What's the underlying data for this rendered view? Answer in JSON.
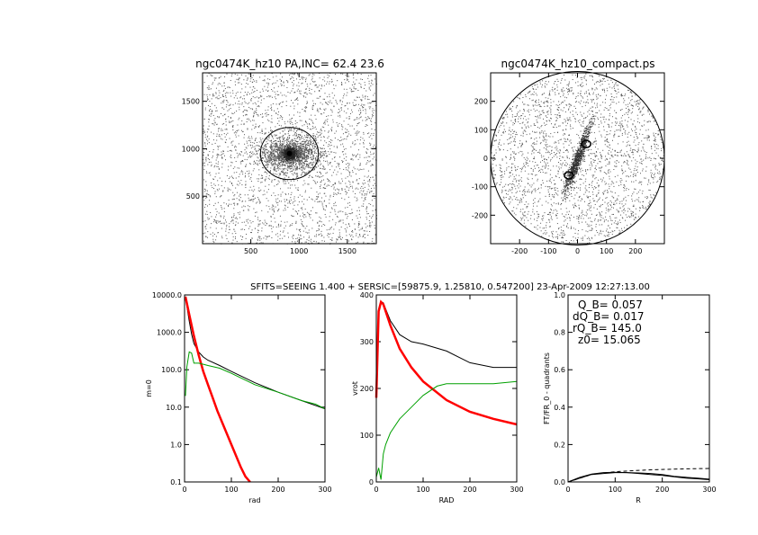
{
  "suptitle": "SFITS=SEEING 1.400 + SERSIC=[59875.9, 1.25810, 0.547200]  23-Apr-2009 12:27:13.00",
  "colors": {
    "black": "#000000",
    "red": "#ff0000",
    "green": "#00a000",
    "lightgreen": "#66ee66",
    "dots": "#555555"
  },
  "chart_data": [
    {
      "type": "scatter",
      "title": "ngc0474K_hz10 PA,INC= 62.4 23.6",
      "xlim": [
        0,
        1800
      ],
      "ylim": [
        0,
        1800
      ],
      "xticks": [
        "500",
        "1000",
        "1500"
      ],
      "yticks": [
        "500",
        "1000",
        "1500"
      ],
      "center": [
        900,
        950
      ],
      "ellipse_radius": 300
    },
    {
      "type": "scatter",
      "title": "ngc0474K_hz10_compact.ps",
      "xlim": [
        -300,
        300
      ],
      "ylim": [
        -300,
        300
      ],
      "xticks": [
        "-200",
        "-100",
        "0",
        "100",
        "200"
      ],
      "yticks": [
        "-200",
        "-100",
        "0",
        "100",
        "200"
      ],
      "circle_radius": 300
    },
    {
      "type": "line",
      "xlabel": "rad",
      "ylabel": "m=0",
      "xlim": [
        0,
        300
      ],
      "ylim": [
        0.1,
        10000
      ],
      "log_y": true,
      "xticks": [
        "0",
        "100",
        "200",
        "300"
      ],
      "yticks": [
        "0.1",
        "1.0",
        "10.0",
        "100.0",
        "1000.0",
        "10000.0"
      ],
      "series": [
        {
          "color": "black",
          "x": [
            2,
            5,
            10,
            15,
            20,
            30,
            40,
            50,
            75,
            100,
            150,
            200,
            250,
            300
          ],
          "y": [
            9000,
            5000,
            2000,
            900,
            500,
            300,
            220,
            180,
            130,
            90,
            45,
            25,
            15,
            9
          ]
        },
        {
          "color": "red",
          "x": [
            2,
            10,
            20,
            30,
            40,
            50,
            60,
            70,
            80,
            90,
            100,
            110,
            120,
            130,
            140
          ],
          "y": [
            9000,
            3000,
            800,
            250,
            90,
            40,
            18,
            8,
            4,
            2,
            1,
            0.5,
            0.25,
            0.14,
            0.1
          ]
        },
        {
          "color": "green",
          "x": [
            2,
            5,
            10,
            15,
            20,
            30,
            40,
            50,
            75,
            100,
            150,
            200,
            250,
            280,
            300
          ],
          "y": [
            20,
            120,
            300,
            280,
            150,
            150,
            140,
            130,
            110,
            80,
            40,
            25,
            15,
            12,
            9
          ]
        }
      ]
    },
    {
      "type": "line",
      "xlabel": "RAD",
      "ylabel": "vrot",
      "xlim": [
        0,
        300
      ],
      "ylim": [
        0,
        400
      ],
      "xticks": [
        "0",
        "100",
        "200",
        "300"
      ],
      "yticks": [
        "0",
        "100",
        "200",
        "300",
        "400"
      ],
      "series": [
        {
          "color": "black",
          "x": [
            0,
            5,
            10,
            15,
            20,
            30,
            50,
            75,
            100,
            150,
            200,
            250,
            300
          ],
          "y": [
            180,
            370,
            385,
            383,
            370,
            345,
            315,
            300,
            295,
            280,
            255,
            245,
            245
          ]
        },
        {
          "color": "red",
          "x": [
            0,
            5,
            10,
            15,
            20,
            30,
            50,
            75,
            100,
            150,
            200,
            250,
            300
          ],
          "y": [
            180,
            365,
            385,
            380,
            365,
            335,
            285,
            245,
            215,
            175,
            150,
            135,
            123
          ]
        },
        {
          "color": "green",
          "x": [
            0,
            5,
            10,
            15,
            20,
            30,
            50,
            75,
            100,
            130,
            150,
            200,
            250,
            300
          ],
          "y": [
            10,
            30,
            5,
            60,
            80,
            105,
            135,
            160,
            185,
            205,
            210,
            210,
            210,
            215
          ]
        }
      ]
    },
    {
      "type": "line",
      "xlabel": "R",
      "ylabel": "FT/FR_0 - quadrants",
      "xlim": [
        0,
        300
      ],
      "ylim": [
        0,
        1
      ],
      "xticks": [
        "0",
        "100",
        "200",
        "300"
      ],
      "yticks": [
        "0.0",
        "0.2",
        "0.4",
        "0.6",
        "0.8",
        "1.0"
      ],
      "annotations": [
        "Q_B=  0.057",
        "dQ_B=  0.017",
        "rQ_B=  145.0",
        "z0= 15.065"
      ],
      "series": [
        {
          "color": "black",
          "x": [
            0,
            25,
            50,
            75,
            100,
            125,
            150,
            175,
            200,
            225,
            250,
            275,
            300
          ],
          "y": [
            0,
            0.02,
            0.04,
            0.045,
            0.05,
            0.05,
            0.048,
            0.045,
            0.04,
            0.03,
            0.025,
            0.02,
            0.015
          ]
        },
        {
          "color": "black",
          "x": [
            0,
            25,
            50,
            75,
            100,
            125,
            150,
            175,
            200,
            225,
            250,
            275,
            300
          ],
          "y": [
            0,
            0.025,
            0.042,
            0.05,
            0.052,
            0.05,
            0.045,
            0.04,
            0.035,
            0.028,
            0.02,
            0.017,
            0.012
          ]
        },
        {
          "color": "black",
          "dashed": true,
          "x": [
            0,
            50,
            100,
            150,
            200,
            250,
            300
          ],
          "y": [
            0,
            0.04,
            0.055,
            0.062,
            0.067,
            0.07,
            0.072
          ]
        }
      ]
    }
  ]
}
